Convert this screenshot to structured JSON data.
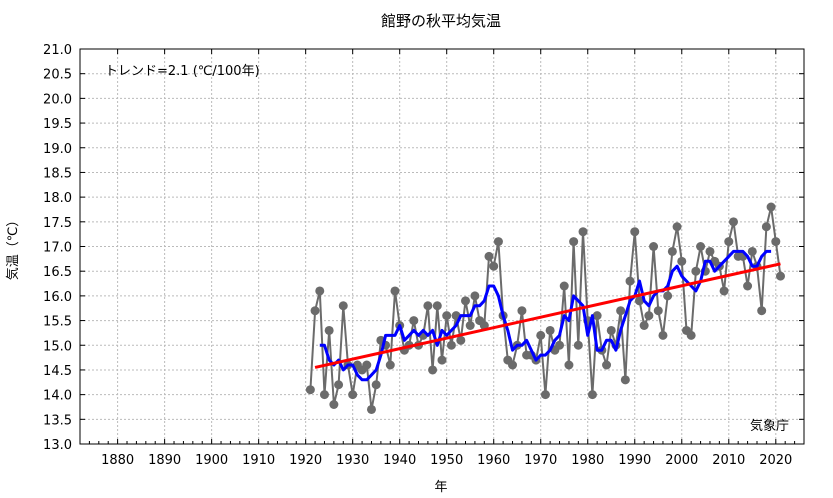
{
  "chart_data": {
    "type": "line",
    "title": "館野の秋平均気温",
    "xlabel": "年",
    "ylabel": "気温（℃）",
    "xlim": [
      1872,
      2026
    ],
    "ylim": [
      13.0,
      21.0
    ],
    "x_ticks": [
      1880,
      1890,
      1900,
      1910,
      1920,
      1930,
      1940,
      1950,
      1960,
      1970,
      1980,
      1990,
      2000,
      2010,
      2020
    ],
    "y_ticks": [
      "13.0",
      "13.5",
      "14.0",
      "14.5",
      "15.0",
      "15.5",
      "16.0",
      "16.5",
      "17.0",
      "17.5",
      "18.0",
      "18.5",
      "19.0",
      "19.5",
      "20.0",
      "20.5",
      "21.0"
    ],
    "grid": true,
    "annotation": "トレンド=2.1 (℃/100年)",
    "source_label": "気象庁",
    "colors": {
      "annual": "#6b6b6b",
      "moving_avg": "#0000ff",
      "trend": "#ff0000"
    },
    "series": [
      {
        "role": "annual",
        "x": [
          1921,
          1922,
          1923,
          1924,
          1925,
          1926,
          1927,
          1928,
          1929,
          1930,
          1931,
          1932,
          1933,
          1934,
          1935,
          1936,
          1937,
          1938,
          1939,
          1940,
          1941,
          1942,
          1943,
          1944,
          1945,
          1946,
          1947,
          1948,
          1949,
          1950,
          1951,
          1952,
          1953,
          1954,
          1955,
          1956,
          1957,
          1958,
          1959,
          1960,
          1961,
          1962,
          1963,
          1964,
          1965,
          1966,
          1967,
          1968,
          1969,
          1970,
          1971,
          1972,
          1973,
          1974,
          1975,
          1976,
          1977,
          1978,
          1979,
          1980,
          1981,
          1982,
          1983,
          1984,
          1985,
          1986,
          1987,
          1988,
          1989,
          1990,
          1991,
          1992,
          1993,
          1994,
          1995,
          1996,
          1997,
          1998,
          1999,
          2000,
          2001,
          2002,
          2003,
          2004,
          2005,
          2006,
          2007,
          2008,
          2009,
          2010,
          2011,
          2012,
          2013,
          2014,
          2015,
          2016,
          2017,
          2018,
          2019,
          2020,
          2021
        ],
        "y": [
          14.1,
          15.7,
          16.1,
          14.0,
          15.3,
          13.8,
          14.2,
          15.8,
          14.6,
          14.0,
          14.6,
          14.5,
          14.6,
          13.7,
          14.2,
          15.1,
          15.0,
          14.6,
          16.1,
          15.4,
          14.9,
          15.0,
          15.5,
          15.0,
          15.2,
          15.8,
          14.5,
          15.8,
          14.7,
          15.6,
          15.0,
          15.6,
          15.1,
          15.9,
          15.4,
          16.0,
          15.5,
          15.4,
          16.8,
          16.6,
          17.1,
          15.6,
          14.7,
          14.6,
          15.0,
          15.7,
          14.8,
          14.8,
          14.7,
          15.2,
          14.0,
          15.3,
          14.9,
          15.0,
          16.2,
          14.6,
          17.1,
          15.0,
          17.3,
          15.5,
          14.0,
          15.6,
          14.9,
          14.6,
          15.3,
          15.0,
          15.7,
          14.3,
          16.3,
          17.3,
          15.9,
          15.4,
          15.6,
          17.0,
          15.7,
          15.2,
          16.0,
          16.9,
          17.4,
          16.7,
          15.3,
          15.2,
          16.5,
          17.0,
          16.5,
          16.9,
          16.7,
          16.6,
          16.1,
          17.1,
          17.5,
          16.8,
          16.8,
          16.2,
          16.9,
          16.6,
          15.7,
          17.4,
          17.8,
          17.1,
          16.4
        ]
      },
      {
        "role": "moving_avg",
        "x": [
          1923,
          1924,
          1925,
          1926,
          1927,
          1928,
          1929,
          1930,
          1931,
          1932,
          1933,
          1934,
          1935,
          1936,
          1937,
          1938,
          1939,
          1940,
          1941,
          1942,
          1943,
          1944,
          1945,
          1946,
          1947,
          1948,
          1949,
          1950,
          1951,
          1952,
          1953,
          1954,
          1955,
          1956,
          1957,
          1958,
          1959,
          1960,
          1961,
          1962,
          1963,
          1964,
          1965,
          1966,
          1967,
          1968,
          1969,
          1970,
          1971,
          1972,
          1973,
          1974,
          1975,
          1976,
          1977,
          1978,
          1979,
          1980,
          1981,
          1982,
          1983,
          1984,
          1985,
          1986,
          1987,
          1988,
          1989,
          1990,
          1991,
          1992,
          1993,
          1994,
          1995,
          1996,
          1997,
          1998,
          1999,
          2000,
          2001,
          2002,
          2003,
          2004,
          2005,
          2006,
          2007,
          2008,
          2009,
          2010,
          2011,
          2012,
          2013,
          2014,
          2015,
          2016,
          2017,
          2018,
          2019
        ],
        "y": [
          15.0,
          15.0,
          14.7,
          14.6,
          14.7,
          14.5,
          14.6,
          14.6,
          14.4,
          14.3,
          14.3,
          14.4,
          14.5,
          14.8,
          15.2,
          15.2,
          15.2,
          15.4,
          15.1,
          15.2,
          15.3,
          15.2,
          15.3,
          15.2,
          15.3,
          15.0,
          15.3,
          15.2,
          15.3,
          15.4,
          15.6,
          15.6,
          15.6,
          15.8,
          15.8,
          15.9,
          16.2,
          16.2,
          16.0,
          15.6,
          15.3,
          14.9,
          15.0,
          15.0,
          15.1,
          14.9,
          14.7,
          14.8,
          14.8,
          14.9,
          15.1,
          15.2,
          15.6,
          15.5,
          16.0,
          15.9,
          15.8,
          15.2,
          15.6,
          14.9,
          14.9,
          15.1,
          15.1,
          14.9,
          15.3,
          15.6,
          15.9,
          16.0,
          16.3,
          15.9,
          15.8,
          16.0,
          16.1,
          16.1,
          16.2,
          16.5,
          16.6,
          16.4,
          16.3,
          16.2,
          16.1,
          16.3,
          16.7,
          16.7,
          16.5,
          16.6,
          16.7,
          16.8,
          16.9,
          16.9,
          16.9,
          16.8,
          16.6,
          16.6,
          16.8,
          16.9,
          16.9
        ]
      },
      {
        "role": "trend",
        "x": [
          1922,
          2021
        ],
        "y": [
          14.55,
          16.65
        ]
      }
    ]
  }
}
